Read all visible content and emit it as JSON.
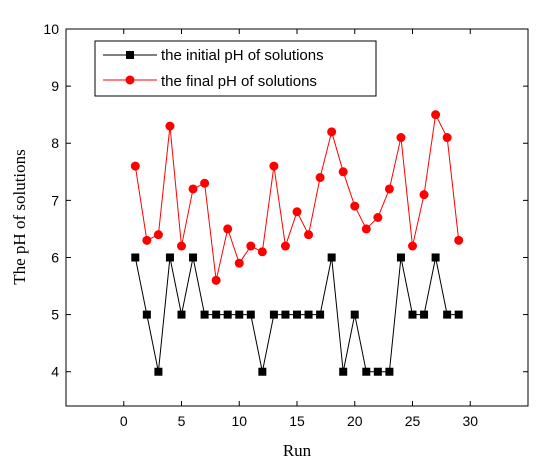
{
  "chart_data": {
    "type": "line",
    "title": "",
    "xlabel": "Run",
    "ylabel": "The pH of solutions",
    "xlim": [
      -5,
      35
    ],
    "ylim": [
      3.4,
      10
    ],
    "x_ticks": [
      0,
      5,
      10,
      15,
      20,
      25,
      30
    ],
    "y_ticks": [
      4,
      5,
      6,
      7,
      8,
      9,
      10
    ],
    "grid": false,
    "legend_position": "top-left",
    "x": [
      1,
      2,
      3,
      4,
      5,
      6,
      7,
      8,
      9,
      10,
      11,
      12,
      13,
      14,
      15,
      16,
      17,
      18,
      19,
      20,
      21,
      22,
      23,
      24,
      25,
      26,
      27,
      28,
      29
    ],
    "series": [
      {
        "name": "the initial pH of solutions",
        "color": "#000000",
        "marker": "square",
        "values": [
          6,
          5,
          4,
          6,
          5,
          6,
          5,
          5,
          5,
          5,
          5,
          4,
          5,
          5,
          5,
          5,
          5,
          6,
          4,
          5,
          4,
          4,
          4,
          6,
          5,
          5,
          6,
          5,
          5
        ]
      },
      {
        "name": "the final pH of solutions",
        "color": "#ff0000",
        "marker": "circle",
        "values": [
          7.6,
          6.3,
          6.4,
          8.3,
          6.2,
          7.2,
          7.3,
          5.6,
          6.5,
          5.9,
          6.2,
          6.1,
          7.6,
          6.2,
          6.8,
          6.4,
          7.4,
          8.2,
          7.5,
          6.9,
          6.5,
          6.7,
          7.2,
          8.1,
          6.2,
          7.1,
          8.5,
          8.1,
          6.3
        ]
      }
    ]
  }
}
